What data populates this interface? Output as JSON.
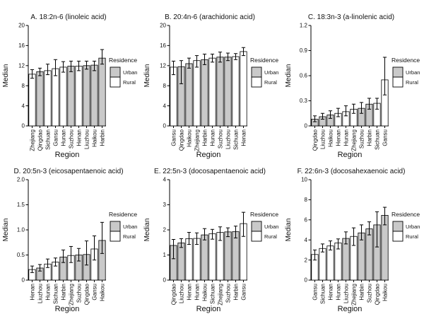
{
  "figure": {
    "legend": {
      "title": "Residence",
      "items": [
        {
          "label": "Urban",
          "color": "#c9c9c9"
        },
        {
          "label": "Rural",
          "color": "#ffffff"
        }
      ]
    },
    "colors": {
      "urban_fill": "#c9c9c9",
      "rural_fill": "#ffffff",
      "stroke": "#000000",
      "background": "#ffffff"
    }
  },
  "chart_data": [
    {
      "id": "a",
      "type": "bar",
      "title": "A. 18:2n-6 (linoleic acid)",
      "xlabel": "Region",
      "ylabel": "Median",
      "ylim": [
        0,
        20
      ],
      "yticks": [
        0,
        4,
        8,
        12,
        16,
        20
      ],
      "ytick_labels": [
        "0",
        "4",
        "8",
        "12",
        "16",
        "20"
      ],
      "grid": false,
      "legend_position": "right",
      "categories": [
        "Zhejiang",
        "Qingdao",
        "Sichuan",
        "Gansu",
        "Hunan",
        "Suzhou",
        "Henan",
        "Liuzhou",
        "Haikou",
        "Harbin"
      ],
      "values": [
        10.3,
        10.8,
        11.0,
        11.4,
        11.7,
        11.9,
        11.9,
        12.0,
        12.1,
        13.5
      ],
      "err_low": [
        9.5,
        10.0,
        10.2,
        10.0,
        10.7,
        10.8,
        11.0,
        11.3,
        11.0,
        12.3
      ],
      "err_high": [
        11.2,
        11.5,
        12.3,
        13.2,
        12.8,
        12.9,
        12.9,
        12.9,
        12.9,
        15.2
      ],
      "residence": [
        "Rural",
        "Urban",
        "Rural",
        "Rural",
        "Rural",
        "Urban",
        "Rural",
        "Urban",
        "Urban",
        "Urban"
      ]
    },
    {
      "id": "b",
      "type": "bar",
      "title": "B. 20:4n-6 (arachidonic acid)",
      "xlabel": "Region",
      "ylabel": "Median",
      "ylim": [
        0,
        20
      ],
      "yticks": [
        0,
        4,
        8,
        12,
        16,
        20
      ],
      "ytick_labels": [
        "0",
        "4",
        "8",
        "12",
        "16",
        "20"
      ],
      "grid": false,
      "legend_position": "right",
      "categories": [
        "Gansu",
        "Qingdao",
        "Haikou",
        "Zhejiang",
        "Harbin",
        "Hunan",
        "Suzhou",
        "Liuzhou",
        "Sichuan",
        "Henan"
      ],
      "values": [
        11.7,
        11.8,
        12.4,
        13.0,
        13.2,
        13.5,
        13.7,
        13.7,
        13.8,
        14.8
      ],
      "err_low": [
        10.2,
        8.4,
        11.5,
        11.7,
        12.2,
        12.7,
        12.7,
        13.0,
        13.2,
        14.0
      ],
      "err_high": [
        12.9,
        13.0,
        13.5,
        14.0,
        14.3,
        14.3,
        14.7,
        14.5,
        14.4,
        15.6
      ],
      "residence": [
        "Rural",
        "Urban",
        "Urban",
        "Rural",
        "Urban",
        "Rural",
        "Urban",
        "Urban",
        "Rural",
        "Rural"
      ]
    },
    {
      "id": "c",
      "type": "bar",
      "title": "C. 18:3n-3 (a-linolenic acid)",
      "xlabel": "Region",
      "ylabel": "Median",
      "ylim": [
        0,
        1.2
      ],
      "yticks": [
        0,
        0.3,
        0.6,
        0.9,
        1.2
      ],
      "ytick_labels": [
        "0",
        "0.3",
        "0.6",
        "0.9",
        "1.2"
      ],
      "grid": false,
      "legend_position": "right",
      "categories": [
        "Qingdao",
        "Liuzhou",
        "Haikou",
        "Henan",
        "Hunan",
        "Zhejiang",
        "Suzhou",
        "Harbin",
        "Sichuan",
        "Gansu"
      ],
      "values": [
        0.08,
        0.11,
        0.13,
        0.15,
        0.17,
        0.2,
        0.21,
        0.26,
        0.27,
        0.55
      ],
      "err_low": [
        0.05,
        0.08,
        0.09,
        0.11,
        0.12,
        0.15,
        0.15,
        0.2,
        0.2,
        0.37
      ],
      "err_high": [
        0.12,
        0.15,
        0.18,
        0.21,
        0.24,
        0.26,
        0.28,
        0.33,
        0.33,
        0.82
      ],
      "residence": [
        "Urban",
        "Urban",
        "Urban",
        "Rural",
        "Rural",
        "Rural",
        "Urban",
        "Urban",
        "Rural",
        "Rural"
      ]
    },
    {
      "id": "d",
      "type": "bar",
      "title": "D. 20:5n-3 (eicosapentaenoic acid)",
      "xlabel": "Region",
      "ylabel": "Median",
      "ylim": [
        0,
        2.0
      ],
      "yticks": [
        0,
        0.5,
        1.0,
        1.5,
        2.0
      ],
      "ytick_labels": [
        "0",
        "0.5",
        "1.0",
        "1.5",
        "2.0"
      ],
      "grid": false,
      "legend_position": "right",
      "categories": [
        "Henan",
        "Liuzhou",
        "Hunan",
        "Sichuan",
        "Harbin",
        "Zhejiang",
        "Suzhou",
        "Qingdao",
        "Gansu",
        "Haikou"
      ],
      "values": [
        0.21,
        0.24,
        0.32,
        0.36,
        0.46,
        0.49,
        0.5,
        0.51,
        0.62,
        0.79
      ],
      "err_low": [
        0.15,
        0.18,
        0.25,
        0.28,
        0.35,
        0.35,
        0.38,
        0.3,
        0.4,
        0.53
      ],
      "err_high": [
        0.28,
        0.31,
        0.42,
        0.44,
        0.6,
        0.67,
        0.63,
        0.78,
        0.88,
        1.15
      ],
      "residence": [
        "Rural",
        "Urban",
        "Rural",
        "Rural",
        "Urban",
        "Rural",
        "Urban",
        "Urban",
        "Rural",
        "Urban"
      ]
    },
    {
      "id": "e",
      "type": "bar",
      "title": "E. 22:5n-3 (docosapentaenoic acid)",
      "xlabel": "Region",
      "ylabel": "Median",
      "ylim": [
        0,
        4
      ],
      "yticks": [
        0,
        1,
        2,
        3,
        4
      ],
      "ytick_labels": [
        "0",
        "1",
        "2",
        "3",
        "4"
      ],
      "grid": false,
      "legend_position": "right",
      "categories": [
        "Qingdao",
        "Liuzhou",
        "Henan",
        "Hunan",
        "Haikou",
        "Sichuan",
        "Zhejiang",
        "Suzhou",
        "Harbin",
        "Gansu"
      ],
      "values": [
        1.38,
        1.48,
        1.65,
        1.66,
        1.8,
        1.85,
        1.9,
        1.92,
        1.93,
        2.25
      ],
      "err_low": [
        0.85,
        1.3,
        1.42,
        1.42,
        1.6,
        1.63,
        1.58,
        1.73,
        1.68,
        1.74
      ],
      "err_high": [
        1.62,
        1.65,
        1.9,
        1.88,
        2.05,
        2.02,
        2.12,
        2.08,
        2.15,
        2.7
      ],
      "residence": [
        "Urban",
        "Urban",
        "Rural",
        "Rural",
        "Urban",
        "Rural",
        "Rural",
        "Urban",
        "Urban",
        "Rural"
      ]
    },
    {
      "id": "f",
      "type": "bar",
      "title": "F. 22:6n-3 (docosahexaenoic acid)",
      "xlabel": "Region",
      "ylabel": "Median",
      "ylim": [
        0,
        10
      ],
      "yticks": [
        0,
        2,
        4,
        6,
        8,
        10
      ],
      "ytick_labels": [
        "0",
        "2",
        "4",
        "6",
        "8",
        "10"
      ],
      "grid": false,
      "legend_position": "right",
      "categories": [
        "Gansu",
        "Sichuan",
        "Henan",
        "Hunan",
        "Liuzhou",
        "Zhejiang",
        "Harbin",
        "Suzhou",
        "Qingdao",
        "Haikou"
      ],
      "values": [
        2.55,
        3.15,
        3.4,
        3.7,
        4.15,
        4.35,
        4.7,
        5.1,
        5.5,
        6.45
      ],
      "err_low": [
        2.0,
        2.8,
        3.0,
        3.1,
        3.6,
        3.45,
        4.0,
        4.5,
        3.3,
        5.5
      ],
      "err_high": [
        3.0,
        3.6,
        3.9,
        4.1,
        4.8,
        5.2,
        5.5,
        5.8,
        6.8,
        7.25
      ],
      "residence": [
        "Rural",
        "Rural",
        "Rural",
        "Rural",
        "Urban",
        "Rural",
        "Urban",
        "Urban",
        "Urban",
        "Urban"
      ]
    }
  ]
}
